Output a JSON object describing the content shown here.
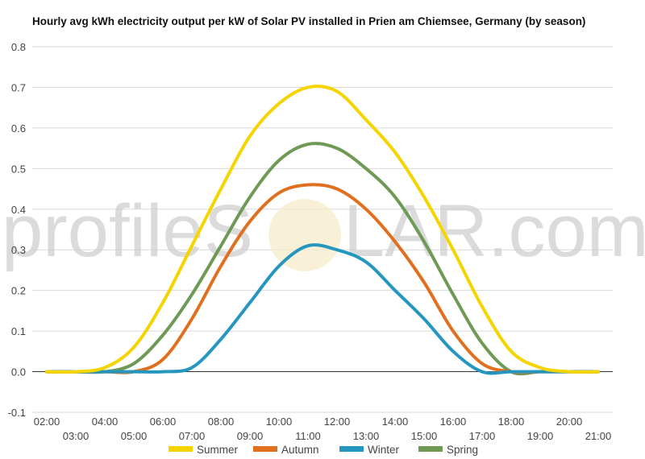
{
  "watermark": {
    "text_left": "profileS",
    "text_right": "LAR.com"
  },
  "chart_data": {
    "type": "line",
    "title": "Hourly avg kWh electricity output per kW of Solar PV installed in Prien am Chiemsee, Germany (by season)",
    "xlabel": "",
    "ylabel": "",
    "x_ticks_upper": [
      "02:00",
      "04:00",
      "06:00",
      "08:00",
      "10:00",
      "12:00",
      "14:00",
      "16:00",
      "18:00",
      "20:00"
    ],
    "x_ticks_lower": [
      "03:00",
      "05:00",
      "07:00",
      "09:00",
      "11:00",
      "13:00",
      "15:00",
      "17:00",
      "19:00",
      "21:00"
    ],
    "y_ticks": [
      "-0.1",
      "0.0",
      "0.1",
      "0.2",
      "0.3",
      "0.4",
      "0.5",
      "0.6",
      "0.7",
      "0.8"
    ],
    "x_range": [
      1.5,
      21.5
    ],
    "ylim": [
      -0.1,
      0.8
    ],
    "grid": true,
    "legend_position": "bottom",
    "x": [
      2,
      3,
      4,
      5,
      6,
      7,
      8,
      9,
      10,
      11,
      12,
      13,
      14,
      15,
      16,
      17,
      18,
      19,
      20,
      21
    ],
    "series": [
      {
        "name": "Summer",
        "color": "#f5d400",
        "values": [
          0,
          0,
          0.01,
          0.06,
          0.17,
          0.31,
          0.45,
          0.58,
          0.66,
          0.7,
          0.69,
          0.62,
          0.54,
          0.43,
          0.3,
          0.16,
          0.05,
          0.01,
          0,
          0
        ]
      },
      {
        "name": "Autumn",
        "color": "#e07020",
        "values": [
          0,
          0,
          0,
          0,
          0.03,
          0.13,
          0.26,
          0.37,
          0.44,
          0.46,
          0.45,
          0.4,
          0.32,
          0.22,
          0.1,
          0.02,
          0,
          0,
          0,
          0
        ]
      },
      {
        "name": "Winter",
        "color": "#2596be",
        "values": [
          0,
          0,
          0,
          0,
          0,
          0.01,
          0.08,
          0.17,
          0.26,
          0.31,
          0.3,
          0.27,
          0.2,
          0.13,
          0.05,
          0,
          0,
          0,
          0,
          0
        ]
      },
      {
        "name": "Spring",
        "color": "#6e9a55",
        "values": [
          0,
          0,
          0,
          0.02,
          0.09,
          0.19,
          0.31,
          0.43,
          0.52,
          0.56,
          0.55,
          0.5,
          0.43,
          0.32,
          0.19,
          0.07,
          0,
          0,
          0,
          0
        ]
      }
    ]
  }
}
